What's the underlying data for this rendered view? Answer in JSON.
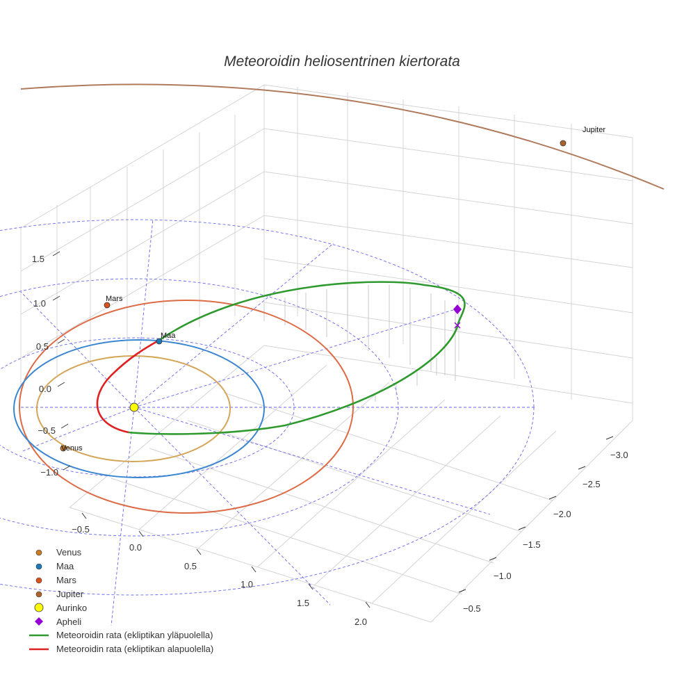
{
  "chart_data": {
    "type": "scatter3d",
    "title": "Meteoroidin heliosentrinen kiertorata",
    "axes": {
      "x": {
        "ticks": [
          "−0.5",
          "0.0",
          "0.5",
          "1.0",
          "1.5",
          "2.0"
        ],
        "values": [
          -0.5,
          0.0,
          0.5,
          1.0,
          1.5,
          2.0
        ]
      },
      "y": {
        "ticks": [
          "−3.0",
          "−2.5",
          "−2.0",
          "−1.5",
          "−1.0",
          "−0.5"
        ],
        "values": [
          -3.0,
          -2.5,
          -2.0,
          -1.5,
          -1.0,
          -0.5
        ]
      },
      "z": {
        "ticks": [
          "1.5",
          "1.0",
          "0.5",
          "0.0",
          "−0.5",
          "−1.0"
        ],
        "values": [
          1.5,
          1.0,
          0.5,
          0.0,
          -0.5,
          -1.0
        ]
      }
    },
    "planets": [
      {
        "name": "Venus",
        "label": "Venus",
        "color": "#c77c28",
        "orbit_color": "#d4a65a",
        "orbit_radius_au": 0.72
      },
      {
        "name": "Maa",
        "label": "Maa",
        "color": "#1f77b4",
        "orbit_color": "#3a86d0",
        "orbit_radius_au": 1.0
      },
      {
        "name": "Mars",
        "label": "Mars",
        "color": "#d9531e",
        "orbit_color": "#dd6b45",
        "orbit_radius_au": 1.52
      },
      {
        "name": "Jupiter",
        "label": "Jupiter",
        "color": "#b0622d",
        "orbit_color": "#b07a5c",
        "orbit_radius_au": 5.2
      }
    ],
    "sun": {
      "name": "Aurinko",
      "color": "#ffff00"
    },
    "aphelion": {
      "name": "Apheli",
      "color": "#9400d3"
    },
    "meteoroid_orbit": {
      "above": {
        "name": "Meteoroidin rata (ekliptikan yläpuolella)",
        "color": "#2e9a2e"
      },
      "below": {
        "name": "Meteoroidin rata (ekliptikan alapuolella)",
        "color": "#e02020"
      }
    },
    "grid_color": "#6666ee"
  },
  "legend": [
    {
      "label": "Venus",
      "symbol": "dot",
      "color": "#c77c28"
    },
    {
      "label": "Maa",
      "symbol": "dot",
      "color": "#1f77b4"
    },
    {
      "label": "Mars",
      "symbol": "dot",
      "color": "#d9531e"
    },
    {
      "label": "Jupiter",
      "symbol": "dot",
      "color": "#b0622d"
    },
    {
      "label": "Aurinko",
      "symbol": "sun",
      "color": "#ffff00"
    },
    {
      "label": "Apheli",
      "symbol": "diamond",
      "color": "#9400d3"
    },
    {
      "label": "Meteoroidin rata (ekliptikan yläpuolella)",
      "symbol": "line",
      "color": "#2e9a2e"
    },
    {
      "label": "Meteoroidin rata (ekliptikan alapuolella)",
      "symbol": "line",
      "color": "#e02020"
    }
  ]
}
